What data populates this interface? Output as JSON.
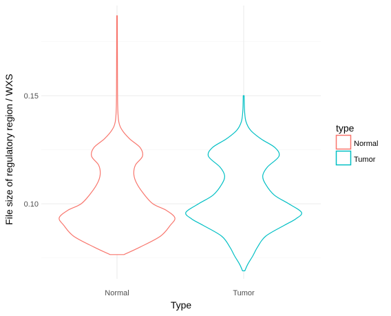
{
  "chart_data": {
    "type": "violin",
    "xlabel": "Type",
    "ylabel": "File size of regulatory region / WXS",
    "categories": [
      "Normal",
      "Tumor"
    ],
    "ylim": [
      0.07,
      0.19
    ],
    "y_ticks": [
      0.1,
      0.15
    ],
    "y_tick_labels": [
      "0.10",
      "0.15"
    ],
    "grid": true,
    "legend": {
      "title": "type",
      "position": "right",
      "entries": [
        {
          "label": "Normal",
          "color": "#F8766D"
        },
        {
          "label": "Tumor",
          "color": "#00BFC4"
        }
      ]
    },
    "series": [
      {
        "category": "Normal",
        "color": "#F8766D",
        "density": [
          {
            "y": 0.0765,
            "w": 0.12
          },
          {
            "y": 0.08,
            "w": 0.4
          },
          {
            "y": 0.085,
            "w": 0.75
          },
          {
            "y": 0.09,
            "w": 0.92
          },
          {
            "y": 0.0935,
            "w": 1.0
          },
          {
            "y": 0.097,
            "w": 0.85
          },
          {
            "y": 0.1,
            "w": 0.62
          },
          {
            "y": 0.105,
            "w": 0.45
          },
          {
            "y": 0.11,
            "w": 0.33
          },
          {
            "y": 0.114,
            "w": 0.29
          },
          {
            "y": 0.118,
            "w": 0.32
          },
          {
            "y": 0.122,
            "w": 0.44
          },
          {
            "y": 0.126,
            "w": 0.4
          },
          {
            "y": 0.13,
            "w": 0.22
          },
          {
            "y": 0.134,
            "w": 0.09
          },
          {
            "y": 0.138,
            "w": 0.03
          },
          {
            "y": 0.145,
            "w": 0.012
          },
          {
            "y": 0.16,
            "w": 0.008
          },
          {
            "y": 0.187,
            "w": 0.005
          }
        ]
      },
      {
        "category": "Tumor",
        "color": "#00BFC4",
        "density": [
          {
            "y": 0.069,
            "w": 0.02
          },
          {
            "y": 0.072,
            "w": 0.07
          },
          {
            "y": 0.076,
            "w": 0.16
          },
          {
            "y": 0.08,
            "w": 0.24
          },
          {
            "y": 0.085,
            "w": 0.38
          },
          {
            "y": 0.09,
            "w": 0.7
          },
          {
            "y": 0.093,
            "w": 0.9
          },
          {
            "y": 0.096,
            "w": 1.0
          },
          {
            "y": 0.1,
            "w": 0.78
          },
          {
            "y": 0.104,
            "w": 0.53
          },
          {
            "y": 0.109,
            "w": 0.38
          },
          {
            "y": 0.113,
            "w": 0.33
          },
          {
            "y": 0.117,
            "w": 0.41
          },
          {
            "y": 0.122,
            "w": 0.61
          },
          {
            "y": 0.126,
            "w": 0.54
          },
          {
            "y": 0.13,
            "w": 0.3
          },
          {
            "y": 0.134,
            "w": 0.12
          },
          {
            "y": 0.138,
            "w": 0.04
          },
          {
            "y": 0.143,
            "w": 0.015
          },
          {
            "y": 0.15,
            "w": 0.008
          }
        ]
      }
    ]
  }
}
